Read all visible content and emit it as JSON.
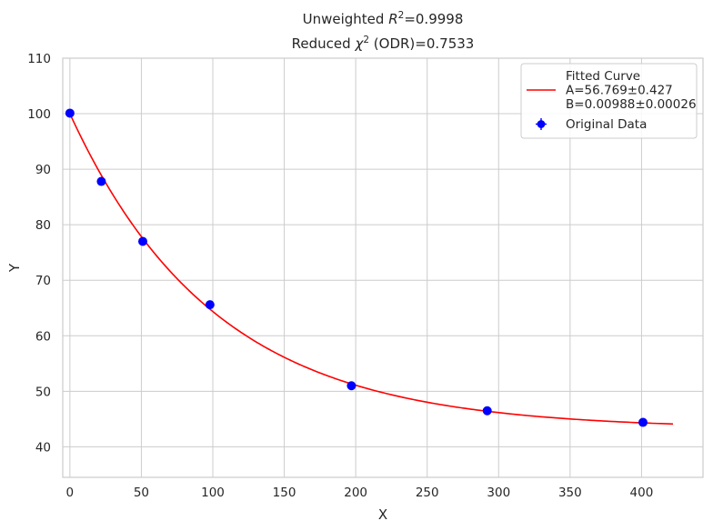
{
  "chart_data": {
    "type": "scatter",
    "title_lines": [
      {
        "prefix": "Unweighted ",
        "math": "R",
        "sup": "2",
        "suffix": "=0.9998"
      },
      {
        "prefix": "Reduced ",
        "math": "χ",
        "sup": "2",
        "suffix": " (ODR)=0.7533"
      }
    ],
    "xlabel": "X",
    "ylabel": "Y",
    "xlim": [
      -5,
      443
    ],
    "ylim": [
      34.5,
      110
    ],
    "xticks": [
      0,
      50,
      100,
      150,
      200,
      250,
      300,
      350,
      400
    ],
    "yticks": [
      40,
      50,
      60,
      70,
      80,
      90,
      100,
      110
    ],
    "grid": true,
    "legend_position": "top-right",
    "series": [
      {
        "name": "Original Data",
        "kind": "points-with-error-bars",
        "color": "#0000ff",
        "x": [
          0,
          22,
          51,
          98,
          197,
          292,
          401
        ],
        "y": [
          100.1,
          87.8,
          77.0,
          65.6,
          51.0,
          46.5,
          44.4
        ]
      },
      {
        "name": "Fitted Curve",
        "kind": "model-curve",
        "color": "#ff0000",
        "model": "y = A*exp(-B*x) + (100 - A)",
        "x_range": [
          0,
          422
        ],
        "legend_lines": [
          "Fitted Curve",
          "A=56.769±0.427",
          "B=0.00988±0.00026"
        ]
      }
    ]
  }
}
